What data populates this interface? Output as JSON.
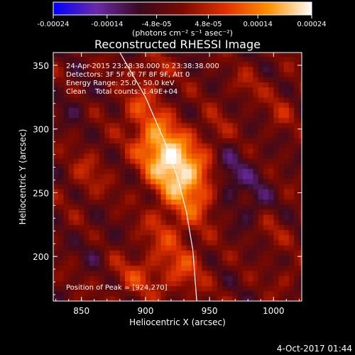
{
  "chart_data": {
    "type": "heatmap",
    "title": "Reconstructed RHESSI Image",
    "xlabel": "Heliocentric X (arcsec)",
    "ylabel": "Heliocentric Y (arcsec)",
    "xlim": [
      828,
      1022
    ],
    "ylim": [
      165,
      360
    ],
    "x_ticks": [
      "850",
      "900",
      "950",
      "1000"
    ],
    "x_tick_values": [
      850,
      900,
      950,
      1000
    ],
    "y_ticks": [
      "200",
      "250",
      "300",
      "350"
    ],
    "y_tick_values": [
      200,
      250,
      300,
      350
    ],
    "colorbar": {
      "tick_labels": [
        "-0.00024",
        "-0.00014",
        "-4.8e-05",
        "4.8e-05",
        "0.00014",
        "0.00024"
      ],
      "tick_values": [
        -0.00024,
        -0.00014,
        -4.8e-05,
        4.8e-05,
        0.00014,
        0.00024
      ],
      "range": [
        -0.00024,
        0.00024
      ],
      "colors": [
        "#0000ff",
        "#6a2aa8",
        "#3a0a1e",
        "#7a0a00",
        "#e03000",
        "#ff9000",
        "#ffffff"
      ],
      "units_label": "(photons cm⁻² s⁻¹ asec⁻²)"
    },
    "annotations": {
      "time": "24-Apr-2015 23:28:38.000 to 23:38:38.000",
      "detectors": "Detectors: 3F 5F 6F 7F 8F 9F, Att 0",
      "energy": "Energy Range: 25.0 - 50.0 keV",
      "method": "Clean    Total counts: 1.49E+04",
      "peak": "Position of Peak = [924,270]"
    },
    "peak": [
      924,
      270
    ],
    "limb_curve": [
      [
        880,
        360
      ],
      [
        900,
        325
      ],
      [
        915,
        290
      ],
      [
        925,
        262
      ],
      [
        932,
        235
      ],
      [
        937,
        205
      ],
      [
        940,
        165
      ]
    ],
    "sources": [
      {
        "x": 924,
        "y": 270,
        "amp": 0.00024,
        "sx": 14,
        "sy": 17
      },
      {
        "x": 907,
        "y": 292,
        "amp": 0.00016,
        "sx": 12,
        "sy": 16
      },
      {
        "x": 940,
        "y": 248,
        "amp": 0.00011,
        "sx": 12,
        "sy": 16
      },
      {
        "x": 893,
        "y": 318,
        "amp": 8e-05,
        "sx": 10,
        "sy": 10
      },
      {
        "x": 905,
        "y": 345,
        "amp": 7e-05,
        "sx": 9,
        "sy": 10
      },
      {
        "x": 855,
        "y": 265,
        "amp": 6e-05,
        "sx": 10,
        "sy": 13
      },
      {
        "x": 915,
        "y": 220,
        "amp": 8e-05,
        "sx": 12,
        "sy": 14
      },
      {
        "x": 895,
        "y": 185,
        "amp": 8e-05,
        "sx": 16,
        "sy": 12
      },
      {
        "x": 930,
        "y": 190,
        "amp": 9e-05,
        "sx": 12,
        "sy": 14
      },
      {
        "x": 955,
        "y": 300,
        "amp": 5e-05,
        "sx": 8,
        "sy": 10
      },
      {
        "x": 980,
        "y": 335,
        "amp": 5e-05,
        "sx": 9,
        "sy": 8
      },
      {
        "x": 1005,
        "y": 315,
        "amp": 5e-05,
        "sx": 8,
        "sy": 12
      },
      {
        "x": 995,
        "y": 220,
        "amp": 5e-05,
        "sx": 10,
        "sy": 10
      },
      {
        "x": 1010,
        "y": 185,
        "amp": 4e-05,
        "sx": 8,
        "sy": 8
      },
      {
        "x": 965,
        "y": 263,
        "amp": -9e-05,
        "sx": 8,
        "sy": 14
      },
      {
        "x": 985,
        "y": 245,
        "amp": -6e-05,
        "sx": 9,
        "sy": 20
      },
      {
        "x": 860,
        "y": 205,
        "amp": -4e-05,
        "sx": 8,
        "sy": 10
      },
      {
        "x": 845,
        "y": 320,
        "amp": -4e-05,
        "sx": 9,
        "sy": 10
      }
    ]
  },
  "footer": {
    "date": "4-Oct-2017 01:44"
  }
}
